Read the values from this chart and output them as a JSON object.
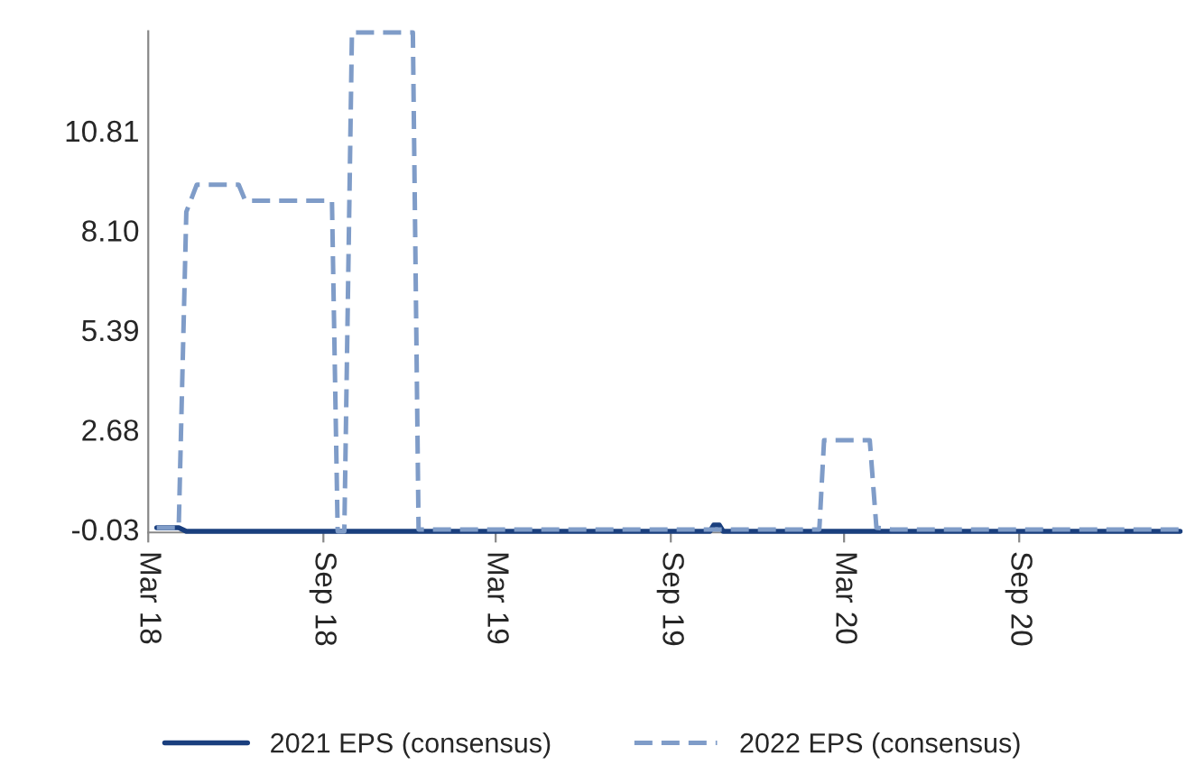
{
  "chart_data": {
    "type": "line",
    "xlim": [
      "2018-03-01",
      "2021-02-17"
    ],
    "xticks": [
      {
        "value": "2018-03-01",
        "label": "Mar 18"
      },
      {
        "value": "2018-09-01",
        "label": "Sep 18"
      },
      {
        "value": "2019-03-01",
        "label": "Mar 19"
      },
      {
        "value": "2019-09-01",
        "label": "Sep 19"
      },
      {
        "value": "2020-03-01",
        "label": "Mar 20"
      },
      {
        "value": "2020-09-01",
        "label": "Sep 20"
      }
    ],
    "ylim": [
      -0.03,
      13.6
    ],
    "yticks": [
      -0.03,
      2.68,
      5.39,
      {
        "value": 8.1,
        "label": "8.10"
      },
      10.81
    ],
    "grid": false,
    "legend": "bottom",
    "marker": "none",
    "series": [
      {
        "name": "2021 EPS (consensus)",
        "color": "#1a3f7e",
        "line_style": "solid",
        "x": [
          "2018-03-10",
          "2018-04-02",
          "2018-04-10",
          "2019-10-12",
          "2019-10-16",
          "2019-10-22",
          "2019-10-26",
          "2021-02-17"
        ],
        "values": [
          0.1,
          0.1,
          0.0,
          0.0,
          0.17,
          0.17,
          0.0,
          0.0
        ]
      },
      {
        "name": "2022 EPS (consensus)",
        "color": "#7f9cc8",
        "line_style": "dashed",
        "x": [
          "2018-03-10",
          "2018-04-02",
          "2018-04-10",
          "2018-04-21",
          "2018-06-04",
          "2018-06-11",
          "2018-09-10",
          "2018-09-16",
          "2018-09-23",
          "2018-10-01",
          "2018-12-04",
          "2018-12-10",
          "2020-02-04",
          "2020-02-09",
          "2020-03-28",
          "2020-04-04",
          "2020-04-20",
          "2021-02-17"
        ],
        "values": [
          0.1,
          0.1,
          8.69,
          9.43,
          9.43,
          8.99,
          8.99,
          0.0,
          0.0,
          13.57,
          13.57,
          0.05,
          0.05,
          2.48,
          2.48,
          0.1,
          0.05,
          0.05
        ]
      }
    ]
  }
}
